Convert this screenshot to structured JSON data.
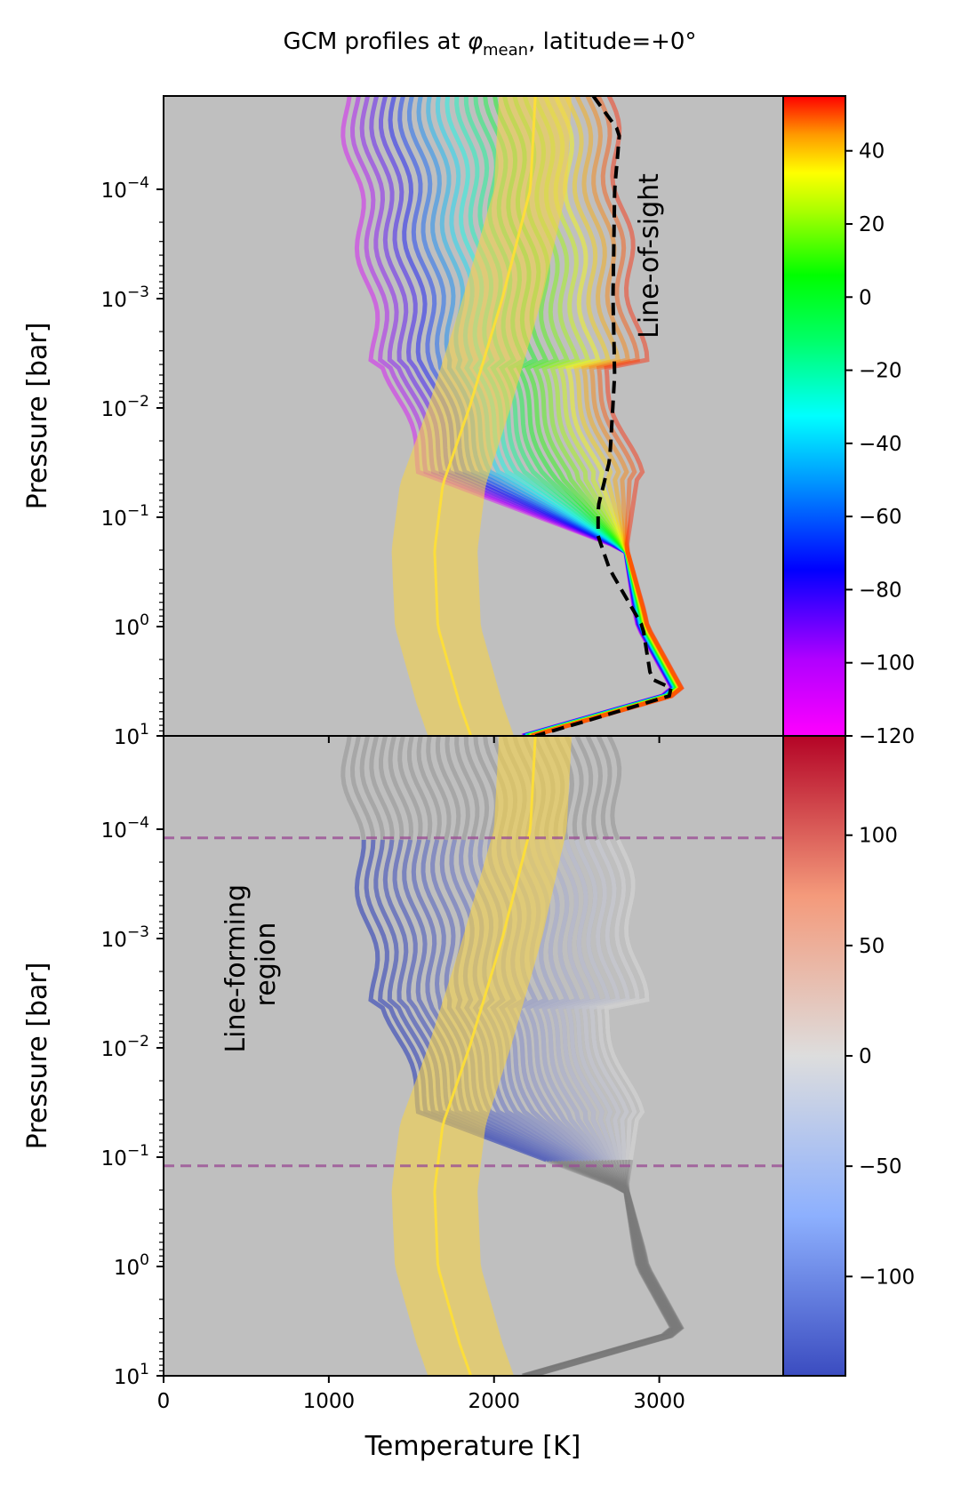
{
  "title": "GCM profiles at φmean, latitude=+0°",
  "title_parts": {
    "prefix": "GCM profiles at ",
    "phi": "φ",
    "sub": "mean",
    "suffix": ", latitude=+0°"
  },
  "chart_data": [
    {
      "panel": "top",
      "type": "line",
      "ylabel": "Pressure [bar]",
      "y_scale": "log",
      "y_inverted": true,
      "ylim": [
        10,
        1.4e-05
      ],
      "xlim": [
        0,
        3750
      ],
      "y_ticks": [
        {
          "value": 0.0001,
          "label": "10",
          "exp": "−4"
        },
        {
          "value": 0.001,
          "label": "10",
          "exp": "−3"
        },
        {
          "value": 0.01,
          "label": "10",
          "exp": "−2"
        },
        {
          "value": 0.1,
          "label": "10",
          "exp": "−1"
        },
        {
          "value": 1,
          "label": "10",
          "exp": "0"
        },
        {
          "value": 10,
          "label": "10",
          "exp": "1"
        }
      ],
      "annotation": "Line-of-sight",
      "colorbar": {
        "cmap": "hsv",
        "range": [
          -120,
          55
        ],
        "ticks": [
          "40",
          "20",
          "0",
          "−20",
          "−40",
          "−60",
          "−80",
          "−100",
          "−120"
        ],
        "tick_values": [
          40,
          20,
          0,
          -20,
          -40,
          -60,
          -80,
          -100,
          -120
        ]
      },
      "reference_profile": {
        "color": "#f5d24a",
        "P": [
          1.4e-05,
          0.0001,
          0.001,
          0.01,
          0.05,
          0.2,
          1,
          5,
          10
        ],
        "T": [
          2250,
          2220,
          2050,
          1850,
          1690,
          1640,
          1660,
          1790,
          1860
        ],
        "band_halfwidth_K": [
          220,
          220,
          240,
          250,
          260,
          260,
          260,
          260,
          260
        ]
      },
      "line_of_sight_profile": {
        "P": [
          1.4e-05,
          3e-05,
          0.0001,
          0.001,
          0.005,
          0.03,
          0.08,
          0.15,
          0.3,
          1,
          3,
          4,
          7,
          10
        ],
        "T": [
          2600,
          2760,
          2730,
          2720,
          2730,
          2700,
          2630,
          2630,
          2700,
          2900,
          2950,
          3130,
          2600,
          2250
        ]
      },
      "profile_family": {
        "count": 28,
        "longitude_range": [
          -115,
          50
        ],
        "deep_P": [
          0.2,
          1,
          4,
          10
        ],
        "deep_T": [
          2800,
          2900,
          3120,
          2200
        ]
      }
    },
    {
      "panel": "bottom",
      "type": "line",
      "xlabel": "Temperature [K]",
      "ylabel": "Pressure [bar]",
      "y_scale": "log",
      "y_inverted": true,
      "ylim": [
        10,
        1.4e-05
      ],
      "xlim": [
        0,
        3750
      ],
      "x_ticks": [
        {
          "value": 0,
          "label": "0"
        },
        {
          "value": 1000,
          "label": "1000"
        },
        {
          "value": 2000,
          "label": "2000"
        },
        {
          "value": 3000,
          "label": "3000"
        }
      ],
      "y_ticks": [
        {
          "value": 0.0001,
          "label": "10",
          "exp": "−4"
        },
        {
          "value": 0.001,
          "label": "10",
          "exp": "−3"
        },
        {
          "value": 0.01,
          "label": "10",
          "exp": "−2"
        },
        {
          "value": 0.1,
          "label": "10",
          "exp": "−1"
        },
        {
          "value": 1,
          "label": "10",
          "exp": "0"
        },
        {
          "value": 10,
          "label": "10",
          "exp": "1"
        }
      ],
      "annotation": "Line-forming\nregion",
      "annotation_lines": [
        "Line-forming",
        "region"
      ],
      "line_forming_region_P": [
        0.00012,
        0.12
      ],
      "colorbar": {
        "cmap": "coolwarm",
        "range": [
          -145,
          145
        ],
        "ticks": [
          "100",
          "50",
          "0",
          "−50",
          "−100"
        ],
        "tick_values": [
          100,
          50,
          0,
          -50,
          -100
        ]
      },
      "reference_profile": {
        "color": "#f5d24a",
        "P": [
          1.4e-05,
          0.0001,
          0.001,
          0.01,
          0.05,
          0.2,
          1,
          5,
          10
        ],
        "T": [
          2250,
          2220,
          2050,
          1850,
          1690,
          1640,
          1660,
          1790,
          1860
        ],
        "band_halfwidth_K": [
          220,
          220,
          240,
          250,
          260,
          260,
          260,
          260,
          260
        ]
      }
    }
  ],
  "colors": {
    "axes_bg": "#bfbfbf",
    "reference_band": "#f5d24a",
    "reference_line": "#ffe033",
    "line_forming_marker": "#9b4f96",
    "line_forming_text": "#800080",
    "gray_profiles": "#7a7a7a"
  }
}
